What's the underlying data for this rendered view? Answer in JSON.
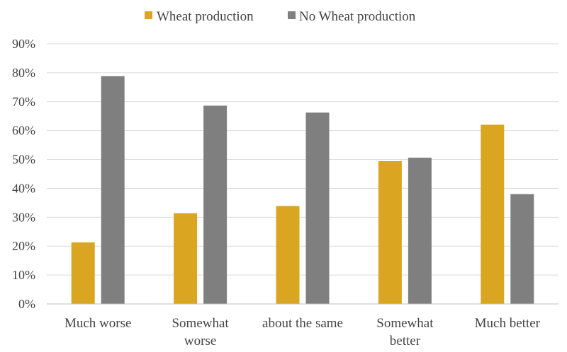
{
  "chart_data": {
    "type": "bar",
    "title": "",
    "xlabel": "",
    "ylabel": "",
    "ylim": [
      0,
      90
    ],
    "yticks": [
      0,
      10,
      20,
      30,
      40,
      50,
      60,
      70,
      80,
      90
    ],
    "ytick_labels": [
      "0%",
      "10%",
      "20%",
      "30%",
      "40%",
      "50%",
      "60%",
      "70%",
      "80%",
      "90%"
    ],
    "categories": [
      [
        "Much worse"
      ],
      [
        "Somewhat",
        "worse"
      ],
      [
        "about the same"
      ],
      [
        "Somewhat",
        "better"
      ],
      [
        "Much better"
      ]
    ],
    "series": [
      {
        "name": "Wheat production",
        "color": "#DAA520",
        "values": [
          21.3,
          31.4,
          33.9,
          49.4,
          62.0
        ]
      },
      {
        "name": "No Wheat production",
        "color": "#7F7F7F",
        "values": [
          78.8,
          68.6,
          66.2,
          50.6,
          38.0
        ]
      }
    ],
    "legend": "top-center",
    "grid": true
  }
}
